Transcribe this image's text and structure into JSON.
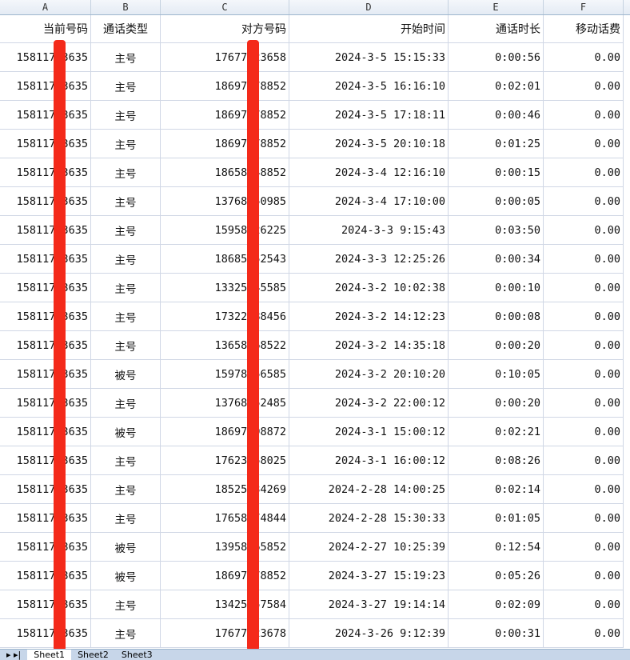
{
  "columns": [
    "A",
    "B",
    "C",
    "D",
    "E",
    "F"
  ],
  "headers": [
    "当前号码",
    "通话类型",
    "对方号码",
    "开始时间",
    "通话时长",
    "移动话费"
  ],
  "rows": [
    [
      "15811753635",
      "主号",
      "17677123658",
      "2024-3-5 15:15:33",
      "0:00:56",
      "0.00"
    ],
    [
      "15811753635",
      "主号",
      "18697378852",
      "2024-3-5 16:16:10",
      "0:02:01",
      "0.00"
    ],
    [
      "15811753635",
      "主号",
      "18697378852",
      "2024-3-5 17:18:11",
      "0:00:46",
      "0.00"
    ],
    [
      "15811753635",
      "主号",
      "18697378852",
      "2024-3-5 20:10:18",
      "0:01:25",
      "0.00"
    ],
    [
      "15811753635",
      "主号",
      "18658548852",
      "2024-3-4 12:16:10",
      "0:00:15",
      "0.00"
    ],
    [
      "15811753635",
      "主号",
      "13768250985",
      "2024-3-4 17:10:00",
      "0:00:05",
      "0.00"
    ],
    [
      "15811753635",
      "主号",
      "15958426225",
      "2024-3-3 9:15:43",
      "0:03:50",
      "0.00"
    ],
    [
      "15811753635",
      "主号",
      "18685552543",
      "2024-3-3 12:25:26",
      "0:00:34",
      "0.00"
    ],
    [
      "15811753635",
      "主号",
      "13325545585",
      "2024-3-2 10:02:38",
      "0:00:10",
      "0.00"
    ],
    [
      "15811753635",
      "主号",
      "17322388456",
      "2024-3-2 14:12:23",
      "0:00:08",
      "0.00"
    ],
    [
      "15811753635",
      "主号",
      "13658568522",
      "2024-3-2 14:35:18",
      "0:00:20",
      "0.00"
    ],
    [
      "15811753635",
      "被号",
      "15978156585",
      "2024-3-2 20:10:20",
      "0:10:05",
      "0.00"
    ],
    [
      "15811753635",
      "主号",
      "13768252485",
      "2024-3-2 22:00:12",
      "0:00:20",
      "0.00"
    ],
    [
      "15811753635",
      "被号",
      "18697998872",
      "2024-3-1 15:00:12",
      "0:02:21",
      "0.00"
    ],
    [
      "15811753635",
      "主号",
      "17623558025",
      "2024-3-1 16:00:12",
      "0:08:26",
      "0.00"
    ],
    [
      "15811753635",
      "主号",
      "18525534269",
      "2024-2-28 14:00:25",
      "0:02:14",
      "0.00"
    ],
    [
      "15811753635",
      "主号",
      "17658474844",
      "2024-2-28 15:30:33",
      "0:01:05",
      "0.00"
    ],
    [
      "15811753635",
      "被号",
      "13958265852",
      "2024-2-27 10:25:39",
      "0:12:54",
      "0.00"
    ],
    [
      "15811753635",
      "被号",
      "18697378852",
      "2024-3-27 15:19:23",
      "0:05:26",
      "0.00"
    ],
    [
      "15811753635",
      "主号",
      "13425557584",
      "2024-3-27 19:14:14",
      "0:02:09",
      "0.00"
    ],
    [
      "15811753635",
      "主号",
      "17677123678",
      "2024-3-26 9:12:39",
      "0:00:31",
      "0.00"
    ]
  ],
  "sheet_tabs": [
    "Sheet1",
    "Sheet2",
    "Sheet3"
  ],
  "active_tab": "Sheet1",
  "colors": {
    "redaction": "#f42a1a",
    "grid": "#d0d7e5",
    "header_bg": "#e4ebf4"
  }
}
